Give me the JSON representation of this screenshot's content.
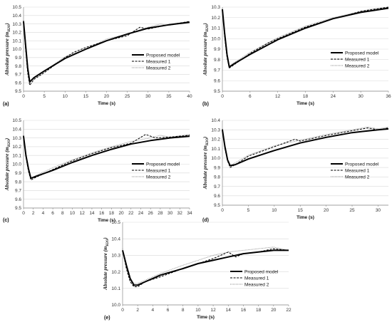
{
  "chart_data": [
    {
      "panel": "(a)",
      "type": "line",
      "xlabel": "Time (s)",
      "ylabel": "Absolute pressure (m",
      "ylabel_sub": "H2O",
      "xlim": [
        0,
        40
      ],
      "ylim": [
        9.5,
        10.5
      ],
      "xticks": [
        "0",
        "5",
        "10",
        "15",
        "20",
        "25",
        "30",
        "35",
        "40"
      ],
      "yticks": [
        "9.5",
        "9.6",
        "9.7",
        "9.8",
        "9.9",
        "10.0",
        "10.1",
        "10.2",
        "10.3",
        "10.4",
        "10.5"
      ],
      "grid": true,
      "legend_position": "right-middle",
      "series": [
        {
          "name": "Proposed model",
          "style": "solid",
          "x": [
            0,
            0.5,
            1.0,
            1.5,
            2.5,
            5,
            10,
            15,
            20,
            25,
            30,
            35,
            40
          ],
          "y": [
            10.33,
            10.05,
            9.78,
            9.61,
            9.66,
            9.74,
            9.89,
            10.0,
            10.1,
            10.18,
            10.25,
            10.29,
            10.32
          ]
        },
        {
          "name": "Measured 1",
          "style": "dashed",
          "x": [
            0,
            0.5,
            1.0,
            1.5,
            2.5,
            5,
            10,
            12,
            15,
            20,
            25,
            28,
            30,
            35,
            40
          ],
          "y": [
            10.34,
            10.0,
            9.72,
            9.57,
            9.64,
            9.72,
            9.9,
            9.96,
            10.02,
            10.1,
            10.16,
            10.26,
            10.24,
            10.29,
            10.33
          ]
        },
        {
          "name": "Measured 2",
          "style": "dotted",
          "x": [
            0,
            0.5,
            1.0,
            1.5,
            2.5,
            5,
            10,
            15,
            20,
            25,
            30,
            33,
            35,
            40
          ],
          "y": [
            10.34,
            10.02,
            9.75,
            9.6,
            9.66,
            9.74,
            9.91,
            10.0,
            10.12,
            10.18,
            10.26,
            10.3,
            10.28,
            10.33
          ]
        }
      ]
    },
    {
      "panel": "(b)",
      "type": "line",
      "xlabel": "Time (s)",
      "ylabel": "Absolute pressure (m",
      "ylabel_sub": "H2O",
      "xlim": [
        0,
        36
      ],
      "ylim": [
        9.5,
        10.3
      ],
      "xticks": [
        "0",
        "6",
        "12",
        "18",
        "24",
        "30",
        "36"
      ],
      "yticks": [
        "9.5",
        "9.6",
        "9.7",
        "9.8",
        "9.9",
        "10.0",
        "10.1",
        "10.2",
        "10.3"
      ],
      "grid": true,
      "legend_position": "right-middle",
      "series": [
        {
          "name": "Proposed model",
          "style": "solid",
          "x": [
            0,
            0.5,
            1.0,
            1.5,
            2.5,
            6,
            12,
            18,
            24,
            30,
            36
          ],
          "y": [
            10.28,
            10.05,
            9.85,
            9.73,
            9.76,
            9.85,
            9.99,
            10.1,
            10.19,
            10.25,
            10.29
          ]
        },
        {
          "name": "Measured 1",
          "style": "dashed",
          "x": [
            0,
            0.5,
            1.0,
            1.5,
            2.5,
            6,
            10,
            12,
            18,
            24,
            26,
            30,
            36
          ],
          "y": [
            10.28,
            10.02,
            9.82,
            9.72,
            9.75,
            9.86,
            9.96,
            10.0,
            10.11,
            10.19,
            10.21,
            10.26,
            10.3
          ]
        },
        {
          "name": "Measured 2",
          "style": "dotted",
          "x": [
            0,
            0.5,
            1.0,
            1.5,
            2.5,
            6,
            12,
            18,
            24,
            30,
            32,
            36
          ],
          "y": [
            10.29,
            10.04,
            9.84,
            9.74,
            9.77,
            9.87,
            10.01,
            10.12,
            10.2,
            10.26,
            10.28,
            10.3
          ]
        }
      ]
    },
    {
      "panel": "(c)",
      "type": "line",
      "xlabel": "Time (s)",
      "ylabel": "Absolute pressure (m",
      "ylabel_sub": "H2O",
      "xlim": [
        0,
        34
      ],
      "ylim": [
        9.5,
        10.5
      ],
      "xticks": [
        "0",
        "2",
        "4",
        "6",
        "8",
        "10",
        "12",
        "14",
        "16",
        "18",
        "20",
        "22",
        "24",
        "26",
        "28",
        "30",
        "32",
        "34"
      ],
      "yticks": [
        "9.5",
        "9.6",
        "9.7",
        "9.8",
        "9.9",
        "10.0",
        "10.1",
        "10.2",
        "10.3",
        "10.4",
        "10.5"
      ],
      "grid": true,
      "legend_position": "right-middle",
      "series": [
        {
          "name": "Proposed model",
          "style": "solid",
          "x": [
            0,
            0.5,
            1.0,
            1.5,
            2.5,
            6,
            10,
            14,
            18,
            22,
            26,
            30,
            34
          ],
          "y": [
            10.32,
            10.1,
            9.95,
            9.84,
            9.86,
            9.93,
            10.02,
            10.1,
            10.17,
            10.23,
            10.27,
            10.3,
            10.32
          ]
        },
        {
          "name": "Measured 1",
          "style": "dashed",
          "x": [
            0,
            0.5,
            1.0,
            1.5,
            2.5,
            6,
            10,
            14,
            18,
            22,
            25,
            27,
            30,
            34
          ],
          "y": [
            10.33,
            10.08,
            9.92,
            9.82,
            9.85,
            9.94,
            10.04,
            10.12,
            10.19,
            10.24,
            10.34,
            10.3,
            10.31,
            10.33
          ]
        },
        {
          "name": "Measured 2",
          "style": "dotted",
          "x": [
            0,
            0.5,
            1.0,
            1.5,
            2.5,
            6,
            10,
            14,
            18,
            22,
            26,
            28,
            30,
            34
          ],
          "y": [
            10.33,
            10.1,
            9.94,
            9.84,
            9.87,
            9.96,
            10.05,
            10.13,
            10.2,
            10.26,
            10.3,
            10.33,
            10.31,
            10.34
          ]
        }
      ]
    },
    {
      "panel": "(d)",
      "type": "line",
      "xlabel": "Time (s)",
      "ylabel": "Absolute pressure (m",
      "ylabel_sub": "H2O",
      "xlim": [
        0,
        32
      ],
      "ylim": [
        9.5,
        10.4
      ],
      "xticks": [
        "0",
        "5",
        "10",
        "15",
        "20",
        "25",
        "30"
      ],
      "yticks": [
        "9.5",
        "9.6",
        "9.7",
        "9.8",
        "9.9",
        "10.0",
        "10.1",
        "10.2",
        "10.3",
        "10.4"
      ],
      "grid": true,
      "legend_position": "right-middle",
      "series": [
        {
          "name": "Proposed model",
          "style": "solid",
          "x": [
            0,
            0.5,
            1.0,
            1.5,
            2.5,
            5,
            10,
            15,
            20,
            25,
            30,
            32
          ],
          "y": [
            10.3,
            10.12,
            9.98,
            9.92,
            9.93,
            9.99,
            10.08,
            10.16,
            10.22,
            10.27,
            10.3,
            10.31
          ]
        },
        {
          "name": "Measured 1",
          "style": "dashed",
          "x": [
            0,
            0.5,
            1.0,
            1.5,
            2.5,
            5,
            10,
            14,
            15,
            20,
            25,
            28,
            30,
            32
          ],
          "y": [
            10.31,
            10.1,
            9.97,
            9.9,
            9.93,
            10.02,
            10.12,
            10.2,
            10.18,
            10.24,
            10.29,
            10.32,
            10.3,
            10.32
          ]
        },
        {
          "name": "Measured 2",
          "style": "dotted",
          "x": [
            0,
            0.5,
            1.0,
            1.5,
            2.5,
            5,
            10,
            15,
            20,
            25,
            28,
            30,
            32
          ],
          "y": [
            10.31,
            10.12,
            9.98,
            9.92,
            9.95,
            10.03,
            10.13,
            10.19,
            10.25,
            10.3,
            10.33,
            10.31,
            10.33
          ]
        }
      ]
    },
    {
      "panel": "(e)",
      "type": "line",
      "xlabel": "Time (s)",
      "ylabel": "Absolute pressure (m",
      "ylabel_sub": "H2O",
      "xlim": [
        0,
        22
      ],
      "ylim": [
        10.0,
        10.5
      ],
      "xticks": [
        "0",
        "2",
        "4",
        "6",
        "8",
        "10",
        "12",
        "14",
        "16",
        "18",
        "20",
        "22"
      ],
      "yticks": [
        "10.0",
        "10.1",
        "10.2",
        "10.3",
        "10.4",
        "10.5"
      ],
      "grid": true,
      "legend_position": "right-middle",
      "series": [
        {
          "name": "Proposed model",
          "style": "solid",
          "x": [
            0,
            0.5,
            1.0,
            1.5,
            2.0,
            3,
            5,
            8,
            10,
            12,
            14,
            16,
            18,
            20,
            22
          ],
          "y": [
            10.33,
            10.24,
            10.16,
            10.12,
            10.12,
            10.14,
            10.18,
            10.22,
            10.25,
            10.27,
            10.29,
            10.31,
            10.32,
            10.33,
            10.33
          ]
        },
        {
          "name": "Measured 1",
          "style": "dashed",
          "x": [
            0,
            0.5,
            1.0,
            1.5,
            2.0,
            3,
            5,
            8,
            10,
            12,
            14,
            15,
            16,
            18,
            20,
            22
          ],
          "y": [
            10.33,
            10.22,
            10.14,
            10.11,
            10.11,
            10.14,
            10.17,
            10.22,
            10.25,
            10.28,
            10.32,
            10.29,
            10.31,
            10.32,
            10.34,
            10.33
          ]
        },
        {
          "name": "Measured 2",
          "style": "dotted",
          "x": [
            0,
            0.5,
            1.0,
            1.5,
            2.0,
            3,
            5,
            8,
            10,
            12,
            14,
            16,
            18,
            20,
            22
          ],
          "y": [
            10.34,
            10.24,
            10.16,
            10.13,
            10.13,
            10.15,
            10.19,
            10.24,
            10.27,
            10.3,
            10.32,
            10.33,
            10.34,
            10.35,
            10.33
          ]
        }
      ]
    }
  ]
}
